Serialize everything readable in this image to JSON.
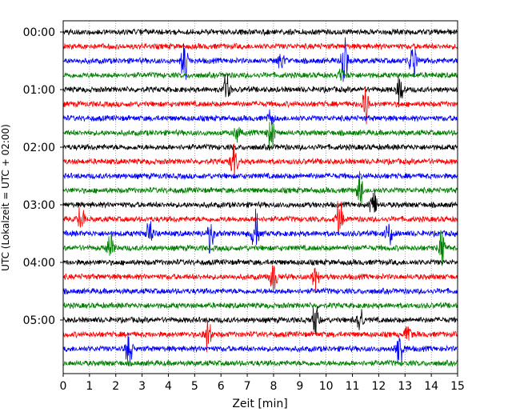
{
  "chart_data": {
    "type": "line",
    "subtype": "helicorder",
    "title": "",
    "xlabel": "Zeit  [min]",
    "ylabel": "UTC (Lokalzeit = UTC + 02:00)",
    "xlim": [
      0,
      15
    ],
    "x_ticks": [
      0,
      1,
      2,
      3,
      4,
      5,
      6,
      7,
      8,
      9,
      10,
      11,
      12,
      13,
      14,
      15
    ],
    "x_tick_labels": [
      "0",
      "1",
      "2",
      "3",
      "4",
      "5",
      "6",
      "7",
      "8",
      "9",
      "10",
      "11",
      "12",
      "13",
      "14",
      "15"
    ],
    "y_ticks": [
      {
        "label": "00:00",
        "trace": 0
      },
      {
        "label": "01:00",
        "trace": 4
      },
      {
        "label": "02:00",
        "trace": 8
      },
      {
        "label": "03:00",
        "trace": 12
      },
      {
        "label": "04:00",
        "trace": 16
      },
      {
        "label": "05:00",
        "trace": 20
      }
    ],
    "trace_interval_min": 15,
    "trace_colors": [
      "#000000",
      "#ff0000",
      "#0000ff",
      "#008000"
    ],
    "trace_count": 24,
    "grid": "vertical dotted lines every minute",
    "events": [
      {
        "trace": 2,
        "minute": 4.6,
        "amplitude": 1.8
      },
      {
        "trace": 2,
        "minute": 8.3,
        "amplitude": 0.8
      },
      {
        "trace": 2,
        "minute": 10.7,
        "amplitude": 1.8
      },
      {
        "trace": 2,
        "minute": 13.3,
        "amplitude": 1.5
      },
      {
        "trace": 3,
        "minute": 10.6,
        "amplitude": 0.5
      },
      {
        "trace": 4,
        "minute": 6.2,
        "amplitude": 1.3
      },
      {
        "trace": 4,
        "minute": 12.8,
        "amplitude": 1.0
      },
      {
        "trace": 5,
        "minute": 11.5,
        "amplitude": 1.3
      },
      {
        "trace": 6,
        "minute": 7.9,
        "amplitude": 0.6
      },
      {
        "trace": 7,
        "minute": 7.9,
        "amplitude": 1.3
      },
      {
        "trace": 7,
        "minute": 6.6,
        "amplitude": 0.7
      },
      {
        "trace": 9,
        "minute": 6.5,
        "amplitude": 1.4
      },
      {
        "trace": 11,
        "minute": 11.3,
        "amplitude": 1.3
      },
      {
        "trace": 12,
        "minute": 11.8,
        "amplitude": 1.4
      },
      {
        "trace": 13,
        "minute": 0.7,
        "amplitude": 1.2
      },
      {
        "trace": 13,
        "minute": 10.5,
        "amplitude": 1.3
      },
      {
        "trace": 14,
        "minute": 3.3,
        "amplitude": 1.1
      },
      {
        "trace": 14,
        "minute": 5.6,
        "amplitude": 1.3
      },
      {
        "trace": 14,
        "minute": 7.3,
        "amplitude": 1.6
      },
      {
        "trace": 14,
        "minute": 12.4,
        "amplitude": 1.0
      },
      {
        "trace": 15,
        "minute": 1.8,
        "amplitude": 1.1
      },
      {
        "trace": 15,
        "minute": 14.4,
        "amplitude": 1.2
      },
      {
        "trace": 17,
        "minute": 8.0,
        "amplitude": 1.3
      },
      {
        "trace": 17,
        "minute": 9.6,
        "amplitude": 1.0
      },
      {
        "trace": 20,
        "minute": 9.6,
        "amplitude": 1.1
      },
      {
        "trace": 20,
        "minute": 11.3,
        "amplitude": 1.1
      },
      {
        "trace": 21,
        "minute": 5.5,
        "amplitude": 1.3
      },
      {
        "trace": 21,
        "minute": 13.1,
        "amplitude": 0.7
      },
      {
        "trace": 22,
        "minute": 2.5,
        "amplitude": 1.3
      },
      {
        "trace": 22,
        "minute": 12.8,
        "amplitude": 1.5
      }
    ]
  }
}
